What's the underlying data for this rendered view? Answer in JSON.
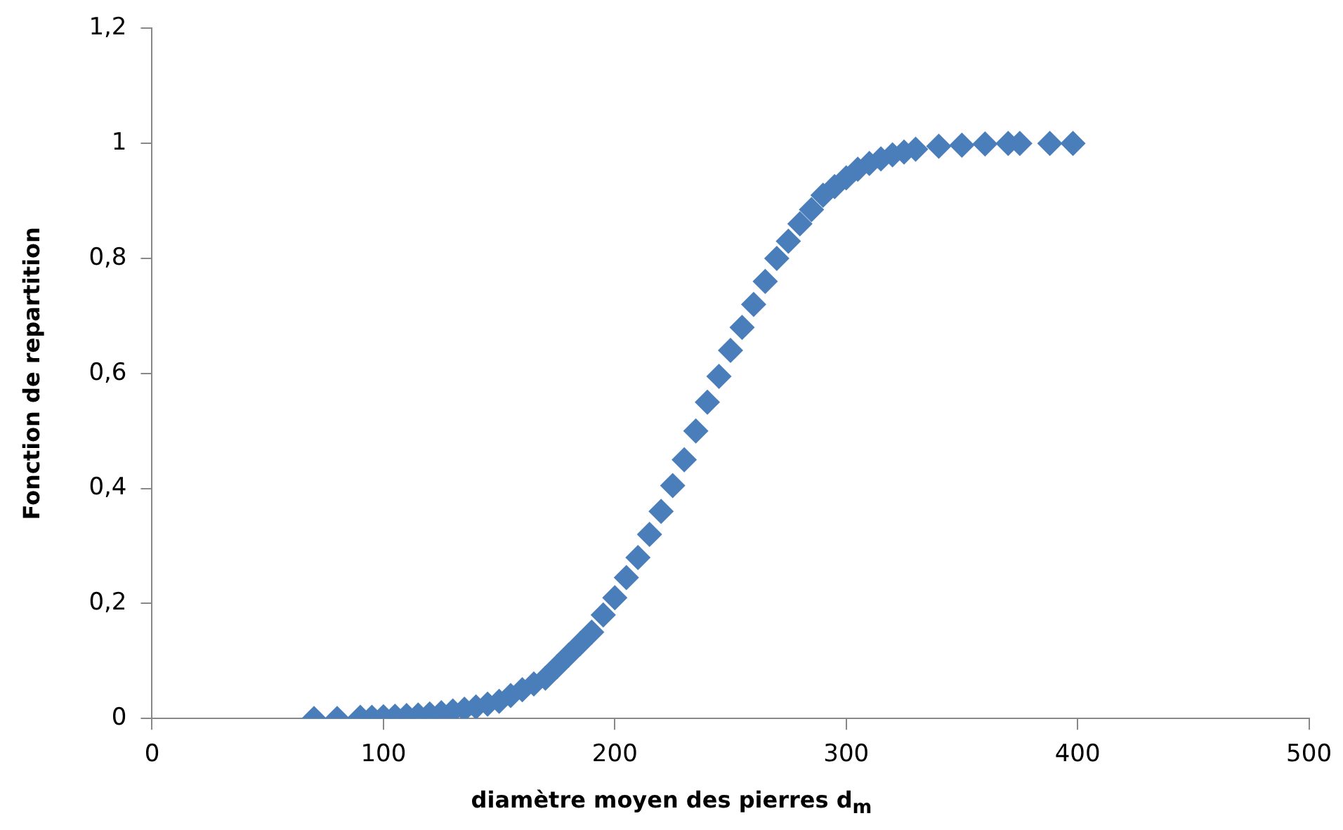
{
  "chart_data": {
    "type": "scatter",
    "xlabel": "diamètre moyen des pierres d$_{m}$",
    "ylabel": "Fonction de repartition",
    "marker": "diamond",
    "grid": false,
    "legend": false,
    "xlim": [
      0,
      500
    ],
    "xticks": [
      0,
      100,
      200,
      300,
      400,
      500
    ],
    "ylim": [
      0,
      1.2
    ],
    "yticks": [
      0,
      {
        "value": 0.2,
        "label": "0,2"
      },
      {
        "value": 0.4,
        "label": "0,4"
      },
      {
        "value": 0.6,
        "label": "0,6"
      },
      {
        "value": 0.8,
        "label": "0,8"
      },
      1,
      {
        "value": 1.2,
        "label": "1,2"
      }
    ],
    "series": [
      {
        "color": "#4a7ebb",
        "x": [
          70,
          80,
          90,
          95,
          100,
          105,
          110,
          115,
          120,
          125,
          130,
          135,
          140,
          145,
          150,
          155,
          160,
          165,
          170,
          175,
          180,
          185,
          190,
          195,
          200,
          205,
          210,
          215,
          220,
          225,
          230,
          235,
          240,
          245,
          250,
          255,
          260,
          265,
          270,
          275,
          280,
          285,
          290,
          295,
          300,
          305,
          310,
          315,
          320,
          325,
          330,
          340,
          350,
          360,
          370,
          375,
          388,
          398
        ],
        "values": [
          0,
          0,
          0.002,
          0.002,
          0.003,
          0.004,
          0.005,
          0.006,
          0.008,
          0.01,
          0.013,
          0.016,
          0.02,
          0.025,
          0.03,
          0.04,
          0.05,
          0.06,
          0.07,
          0.09,
          0.11,
          0.13,
          0.15,
          0.18,
          0.21,
          0.245,
          0.28,
          0.32,
          0.36,
          0.405,
          0.45,
          0.5,
          0.55,
          0.595,
          0.64,
          0.68,
          0.72,
          0.76,
          0.8,
          0.83,
          0.86,
          0.885,
          0.91,
          0.925,
          0.94,
          0.955,
          0.965,
          0.973,
          0.98,
          0.985,
          0.99,
          0.995,
          0.997,
          0.999,
          1,
          1,
          1,
          1
        ]
      }
    ]
  }
}
